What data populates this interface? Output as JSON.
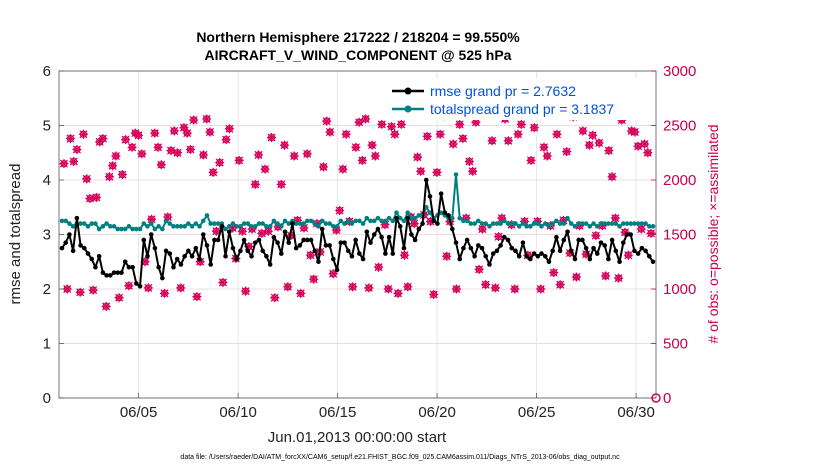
{
  "chart_data": {
    "type": "line",
    "title": "Northern Hemisphere 217222 / 218204 = 99.550%",
    "subtitle": "AIRCRAFT_V_WIND_COMPONENT @ 525 hPa",
    "xlabel": "Jun.01,2013 00:00:00 start",
    "ylabel": "rmse and totalspread",
    "y2label": "# of obs: o=possible; ×=assimilated",
    "footnote": "data file: /Users/raeder/DAI/ATM_forcXX/CAM6_setup/f.e21.FHIST_BGC.f09_025.CAM6assim.011/Diags_NTrS_2013-06/obs_diag_output.nc",
    "xlim": [
      1.0,
      31.0
    ],
    "ylim": [
      0,
      6
    ],
    "y2lim": [
      0,
      3000
    ],
    "x_ticks": [
      5,
      10,
      15,
      20,
      25,
      30
    ],
    "x_tick_labels": [
      "06/05",
      "06/10",
      "06/15",
      "06/20",
      "06/25",
      "06/30"
    ],
    "y_ticks": [
      0,
      1,
      2,
      3,
      4,
      5,
      6
    ],
    "y_tick_labels": [
      "0",
      "1",
      "2",
      "3",
      "4",
      "5",
      "6"
    ],
    "y2_ticks": [
      0,
      500,
      1000,
      1500,
      2000,
      2500,
      3000
    ],
    "y2_tick_labels": [
      "0",
      "500",
      "1000",
      "1500",
      "2000",
      "2500",
      "3000"
    ],
    "colors": {
      "rmse": "#000000",
      "spread": "#008080",
      "obs": "#d6005a",
      "axis_right": "#c8004f",
      "legend_text": "#0050e0"
    },
    "legend_position": "top-right",
    "series": [
      {
        "name": "rmse grand pr = 2.7632",
        "values": [
          2.75,
          2.85,
          3.0,
          2.7,
          3.3,
          2.8,
          2.75,
          2.65,
          2.55,
          2.4,
          2.6,
          2.3,
          2.25,
          2.25,
          2.3,
          2.3,
          2.3,
          2.5,
          2.4,
          2.4,
          2.1,
          2.05,
          2.9,
          2.6,
          3.0,
          2.75,
          2.4,
          2.2,
          2.7,
          2.65,
          2.4,
          2.55,
          2.45,
          2.6,
          2.7,
          2.6,
          2.75,
          2.55,
          3.0,
          2.8,
          2.45,
          2.9,
          2.9,
          3.15,
          2.6,
          3.05,
          2.75,
          2.55,
          2.7,
          2.9,
          2.7,
          2.6,
          2.85,
          2.9,
          2.7,
          2.6,
          2.45,
          2.95,
          2.85,
          2.65,
          3.05,
          2.85,
          3.2,
          2.75,
          2.8,
          2.9,
          2.9,
          2.9,
          2.7,
          2.5,
          3.1,
          2.8,
          2.8,
          2.55,
          2.35,
          2.85,
          2.85,
          2.7,
          2.6,
          2.9,
          2.65,
          2.55,
          3.05,
          2.85,
          3.0,
          3.1,
          2.95,
          2.65,
          2.95,
          2.65,
          3.3,
          3.15,
          2.75,
          3.3,
          3.0,
          2.9,
          3.1,
          3.2,
          4.0,
          3.7,
          3.25,
          3.2,
          3.75,
          3.4,
          3.35,
          3.1,
          2.85,
          2.55,
          2.75,
          2.9,
          2.75,
          2.6,
          2.8,
          2.75,
          2.6,
          2.45,
          2.65,
          2.7,
          2.8,
          2.95,
          2.9,
          2.75,
          2.7,
          2.6,
          2.85,
          2.6,
          2.55,
          2.65,
          2.6,
          2.65,
          2.6,
          2.5,
          2.7,
          2.95,
          2.7,
          2.9,
          3.05,
          2.7,
          2.55,
          2.9,
          2.9,
          2.75,
          2.55,
          2.75,
          2.65,
          2.85,
          2.8,
          2.55,
          2.9,
          2.7,
          2.5,
          2.85,
          3.0,
          3.0,
          2.7,
          2.65,
          2.75,
          2.7,
          2.6,
          2.5
        ]
      },
      {
        "name": "totalspread grand pr = 3.1837",
        "values": [
          3.25,
          3.25,
          3.2,
          3.15,
          3.2,
          3.2,
          3.2,
          3.15,
          3.2,
          3.2,
          3.1,
          3.15,
          3.2,
          3.15,
          3.15,
          3.1,
          3.1,
          3.1,
          3.15,
          3.1,
          3.1,
          3.1,
          3.2,
          3.15,
          3.2,
          3.1,
          3.15,
          3.1,
          3.25,
          3.2,
          3.15,
          3.15,
          3.15,
          3.15,
          3.2,
          3.15,
          3.2,
          3.15,
          3.25,
          3.35,
          3.2,
          3.2,
          3.2,
          3.2,
          3.1,
          3.15,
          3.2,
          3.15,
          3.15,
          3.2,
          3.2,
          3.15,
          3.15,
          3.2,
          3.2,
          3.15,
          3.15,
          3.25,
          3.2,
          3.15,
          3.25,
          3.2,
          3.25,
          3.2,
          3.2,
          3.2,
          3.25,
          3.25,
          3.2,
          3.15,
          3.25,
          3.2,
          3.2,
          3.15,
          3.15,
          3.25,
          3.2,
          3.25,
          3.2,
          3.25,
          3.25,
          3.2,
          3.3,
          3.25,
          3.25,
          3.3,
          3.25,
          3.25,
          3.3,
          3.25,
          3.4,
          3.3,
          3.25,
          3.4,
          3.3,
          3.3,
          3.35,
          3.35,
          3.5,
          3.4,
          3.3,
          3.35,
          3.4,
          3.35,
          3.3,
          3.3,
          4.1,
          3.3,
          3.25,
          3.25,
          3.2,
          3.2,
          3.25,
          3.2,
          3.2,
          3.15,
          3.2,
          3.2,
          3.2,
          3.25,
          3.2,
          3.2,
          3.2,
          3.15,
          3.2,
          3.15,
          3.15,
          3.2,
          3.2,
          3.15,
          3.2,
          3.15,
          3.2,
          3.25,
          3.2,
          3.2,
          3.3,
          3.2,
          3.15,
          3.2,
          3.2,
          3.2,
          3.15,
          3.2,
          3.15,
          3.2,
          3.2,
          3.2,
          3.2,
          3.2,
          3.15,
          3.2,
          3.2,
          3.2,
          3.2,
          3.2,
          3.2,
          3.2,
          3.15,
          3.15
        ]
      },
      {
        "name": "obs possible / assimilated",
        "values": [
          2150,
          1000,
          2380,
          2170,
          2280,
          970,
          2420,
          2010,
          1830,
          990,
          1840,
          2350,
          2380,
          840,
          2030,
          2130,
          2220,
          920,
          2050,
          2370,
          1030,
          2300,
          2430,
          2410,
          2240,
          1250,
          1010,
          1640,
          2430,
          2300,
          2140,
          960,
          1660,
          2270,
          2450,
          2250,
          1010,
          2480,
          2430,
          2280,
          2550,
          930,
          1250,
          2230,
          2560,
          2440,
          2070,
          1530,
          2160,
          1060,
          2370,
          2470,
          1560,
          1280,
          2180,
          1530,
          980,
          1390,
          1550,
          1960,
          2230,
          1510,
          2100,
          1530,
          2390,
          920,
          1570,
          1960,
          2320,
          1020,
          1490,
          2220,
          1630,
          960,
          1560,
          2240,
          1310,
          1090,
          1600,
          1340,
          2120,
          2540,
          2440,
          1140,
          1540,
          1720,
          2100,
          2420,
          1620,
          1020,
          2300,
          2530,
          2180,
          2560,
          1010,
          2320,
          2220,
          1200,
          2510,
          1590,
          1000,
          2490,
          2420,
          960,
          2510,
          1310,
          1020,
          1660,
          1600,
          2210,
          2080,
          1680,
          2400,
          1620,
          950,
          2070,
          2420,
          2590,
          1300,
          1620,
          2330,
          1000,
          2510,
          2380,
          1650,
          2170,
          2080,
          2530,
          1180,
          1550,
          1040,
          2640,
          2360,
          1010,
          1480,
          1650,
          2560,
          2360,
          1590,
          1000,
          2420,
          2510,
          1620,
          1310,
          2180,
          2480,
          1620,
          1000,
          2300,
          2220,
          1580,
          1150,
          2420,
          1040,
          1630,
          2260,
          1330,
          2580,
          1110,
          1580,
          2450,
          1320,
          2320,
          2410,
          1490,
          2340,
          1580,
          1120,
          2270,
          2030,
          1650,
          1100,
          2550,
          1520,
          1310,
          2450,
          2440,
          2310,
          1550,
          2330,
          2250,
          1510
        ]
      }
    ]
  }
}
